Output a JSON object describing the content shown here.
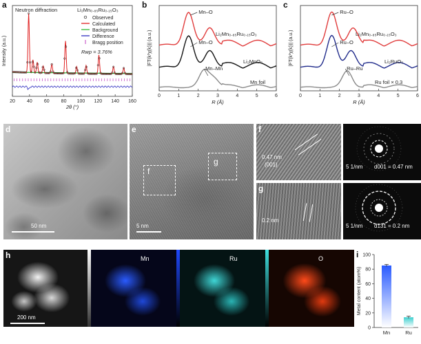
{
  "panels": {
    "a": {
      "label": "a",
      "title": "Neutron diffraction",
      "formula": "Li₂Mn₀.₈₅Ru₀.₁₅O₃",
      "legend": [
        "Observed",
        "Calculated",
        "Background",
        "Difference",
        "Bragg position"
      ],
      "rwp": "Rwp = 3.76%",
      "xlabel": "2θ (°)",
      "ylabel": "Intensity (a.u.)"
    },
    "b": {
      "label": "b",
      "ylabel": "|FT(k³χ(k))| (a.u.)",
      "xlabel": "R (Å)",
      "series": [
        "Li₂Mn₀.₈₅Ru₀.₁₅O₃",
        "Li₂MnO₃",
        "Mn foil"
      ],
      "annotations": [
        "Mn–O",
        "Mn–O",
        "Mn–Mn"
      ]
    },
    "c": {
      "label": "c",
      "ylabel": "|FT(k³χ(k))| (a.u.)",
      "xlabel": "R (Å)",
      "series": [
        "Li₂Mn₀.₈₅Ru₀.₁₅O₃",
        "Li₂RuO₃",
        "Ru foil × 0.3"
      ],
      "annotations": [
        "Ru–O",
        "Ru–O",
        "Ru–Ru"
      ]
    },
    "d": {
      "label": "d",
      "scale": "50 nm"
    },
    "e": {
      "label": "e",
      "scale": "5 nm",
      "box_f": "f",
      "box_g": "g"
    },
    "f": {
      "label": "f",
      "measure": "0.47 nm",
      "plane": "(001)"
    },
    "g": {
      "label": "g",
      "measure": "0.2 nm"
    },
    "saed1": {
      "scale": "5 1/nm",
      "d": "d001 = 0.47 nm"
    },
    "saed2": {
      "scale": "5 1/nm",
      "d": "d131 = 0.2 nm"
    },
    "h": {
      "label": "h",
      "scale": "200 nm",
      "maps": [
        "Mn",
        "Ru",
        "O"
      ]
    },
    "i": {
      "label": "i",
      "ylabel": "Metal content (atom%)"
    }
  },
  "chart_data": [
    {
      "type": "line",
      "id": "a",
      "title": "Neutron diffraction",
      "xlabel": "2θ (°)",
      "ylabel": "Intensity (a.u.)",
      "xlim": [
        20,
        160
      ],
      "xticks": [
        20,
        40,
        60,
        80,
        100,
        120,
        140,
        160
      ],
      "peaks": [
        {
          "x": 39,
          "h": 1.0
        },
        {
          "x": 44,
          "h": 0.22
        },
        {
          "x": 49,
          "h": 0.18
        },
        {
          "x": 56,
          "h": 0.12
        },
        {
          "x": 66,
          "h": 0.15
        },
        {
          "x": 82,
          "h": 0.55
        },
        {
          "x": 95,
          "h": 0.12
        },
        {
          "x": 106,
          "h": 0.14
        },
        {
          "x": 121,
          "h": 0.32
        },
        {
          "x": 138,
          "h": 0.12
        },
        {
          "x": 150,
          "h": 0.1
        }
      ],
      "legend": [
        "Observed",
        "Calculated",
        "Background",
        "Difference",
        "Bragg position"
      ],
      "annotation": "Rwp = 3.76%"
    },
    {
      "type": "line",
      "id": "b",
      "xlabel": "R (Å)",
      "ylabel": "|FT(k³χ(k))| (a.u.)",
      "xlim": [
        0,
        6
      ],
      "xticks": [
        0,
        1,
        2,
        3,
        4,
        5,
        6
      ],
      "series": [
        {
          "name": "Li₂Mn₀.₈₅Ru₀.₁₅O₃",
          "color": "#e03a3a",
          "peaks": [
            1.5,
            2.6
          ]
        },
        {
          "name": "Li₂MnO₃",
          "color": "#111111",
          "peaks": [
            1.5,
            2.6
          ]
        },
        {
          "name": "Mn foil",
          "color": "#888888",
          "peaks": [
            2.3,
            2.8
          ]
        }
      ]
    },
    {
      "type": "line",
      "id": "c",
      "xlabel": "R (Å)",
      "ylabel": "|FT(k³χ(k))| (a.u.)",
      "xlim": [
        0,
        6
      ],
      "xticks": [
        0,
        1,
        2,
        3,
        4,
        5,
        6
      ],
      "series": [
        {
          "name": "Li₂Mn₀.₈₅Ru₀.₁₅O₃",
          "color": "#e03a3a",
          "peaks": [
            1.6,
            2.7
          ]
        },
        {
          "name": "Li₂RuO₃",
          "color": "#1f2a8a",
          "peaks": [
            1.6,
            2.6
          ]
        },
        {
          "name": "Ru foil × 0.3",
          "color": "#888888",
          "peaks": [
            2.4
          ]
        }
      ]
    },
    {
      "type": "bar",
      "id": "i",
      "categories": [
        "Mn",
        "Ru"
      ],
      "values": [
        85,
        14
      ],
      "errors": [
        1.5,
        1.5
      ],
      "ylabel": "Metal content (atom%)",
      "ylim": [
        0,
        100
      ],
      "yticks": [
        0,
        20,
        40,
        60,
        80,
        100
      ]
    }
  ]
}
